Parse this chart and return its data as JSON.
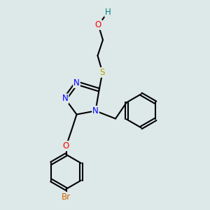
{
  "background_color": "#dde8e8",
  "bond_color": "#000000",
  "bond_width": 1.5,
  "atom_colors": {
    "N": "#0000ff",
    "O": "#ff0000",
    "S": "#b8a000",
    "H": "#008080",
    "Br": "#cc6600"
  },
  "font_size": 8.5,
  "fig_size": [
    3.0,
    3.0
  ],
  "dpi": 100
}
